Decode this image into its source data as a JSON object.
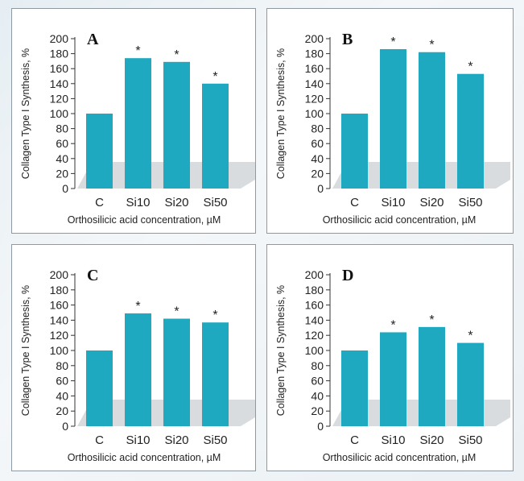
{
  "chart_data": [
    {
      "type": "bar",
      "panel_label": "A",
      "categories": [
        "C",
        "Si10",
        "Si20",
        "Si50"
      ],
      "values": [
        100,
        174,
        169,
        140
      ],
      "significance": [
        "",
        "*",
        "*",
        "*"
      ],
      "ylabel": "Collagen Type I Synthesis, %",
      "xlabel": "Orthosilicic acid concentration, µM",
      "ylim": [
        0,
        200
      ],
      "yticks": [
        0,
        20,
        40,
        60,
        80,
        100,
        120,
        140,
        160,
        180,
        200
      ],
      "bar_color": "#1fa9c0",
      "grid": false
    },
    {
      "type": "bar",
      "panel_label": "B",
      "categories": [
        "C",
        "Si10",
        "Si20",
        "Si50"
      ],
      "values": [
        100,
        186,
        182,
        153
      ],
      "significance": [
        "",
        "*",
        "*",
        "*"
      ],
      "ylabel": "Collagen Type I Synthesis, %",
      "xlabel": "Orthosilicic acid concentration, µM",
      "ylim": [
        0,
        200
      ],
      "yticks": [
        0,
        20,
        40,
        60,
        80,
        100,
        120,
        140,
        160,
        180,
        200
      ],
      "bar_color": "#1fa9c0",
      "grid": false
    },
    {
      "type": "bar",
      "panel_label": "C",
      "categories": [
        "C",
        "Si10",
        "Si20",
        "Si50"
      ],
      "values": [
        100,
        149,
        142,
        137
      ],
      "significance": [
        "",
        "*",
        "*",
        "*"
      ],
      "ylabel": "Collagen Type I Synthesis, %",
      "xlabel": "Orthosilicic acid concentration, µM",
      "ylim": [
        0,
        200
      ],
      "yticks": [
        0,
        20,
        40,
        60,
        80,
        100,
        120,
        140,
        160,
        180,
        200
      ],
      "bar_color": "#1fa9c0",
      "grid": false
    },
    {
      "type": "bar",
      "panel_label": "D",
      "categories": [
        "C",
        "Si10",
        "Si20",
        "Si50"
      ],
      "values": [
        100,
        124,
        131,
        110
      ],
      "significance": [
        "",
        "*",
        "*",
        "*"
      ],
      "ylabel": "Collagen Type I Synthesis, %",
      "xlabel": "Orthosilicic acid concentration, µM",
      "ylim": [
        0,
        200
      ],
      "yticks": [
        0,
        20,
        40,
        60,
        80,
        100,
        120,
        140,
        160,
        180,
        200
      ],
      "bar_color": "#1fa9c0",
      "grid": false
    }
  ]
}
